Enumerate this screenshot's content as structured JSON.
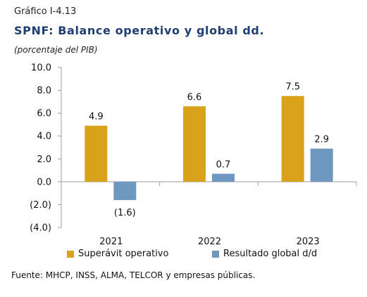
{
  "header": {
    "figure_number": "Gráfico I-4.13",
    "title": "SPNF: Balance operativo y global dd.",
    "subtitle": "(porcentaje del PIB)"
  },
  "source": "Fuente: MHCP, INSS, ALMA, TELCOR  y empresas públicas.",
  "colors": {
    "series1": "#d9a21b",
    "series2": "#6e98bf",
    "axis": "#9e9e9e"
  },
  "chart_data": {
    "type": "bar",
    "categories": [
      "2021",
      "2022",
      "2023"
    ],
    "series": [
      {
        "name": "Superávit operativo",
        "values": [
          4.9,
          6.6,
          7.5
        ],
        "labels": [
          "4.9",
          "6.6",
          "7.5"
        ]
      },
      {
        "name": "Resultado global d/d",
        "values": [
          -1.6,
          0.7,
          2.9
        ],
        "labels": [
          "(1.6)",
          "0.7",
          "2.9"
        ]
      }
    ],
    "yticks": [
      "10.0",
      "8.0",
      "6.0",
      "4.0",
      "2.0",
      "0.0",
      "(2.0)",
      "(4.0)"
    ],
    "ylim": [
      -4,
      10
    ],
    "xlabel": "",
    "ylabel": "",
    "grid": false,
    "legend": "bottom"
  }
}
